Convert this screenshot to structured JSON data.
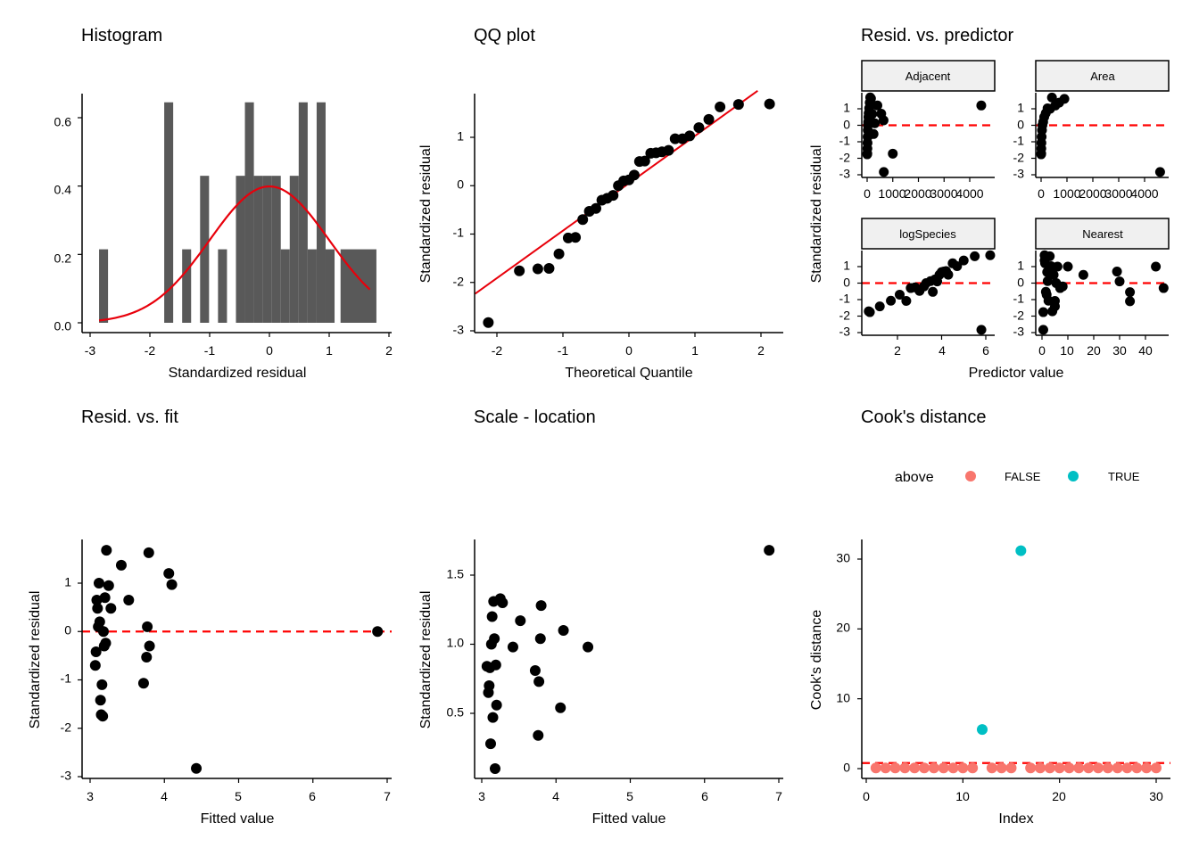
{
  "panels": {
    "histogram": {
      "title": "Histogram",
      "xlabel": "Standardized residual",
      "xticks": [
        "-3",
        "-2",
        "-1",
        "0",
        "1",
        "2"
      ],
      "yticks": [
        "0.0",
        "0.2",
        "0.4",
        "0.6"
      ]
    },
    "qq": {
      "title": "QQ plot",
      "xlabel": "Theoretical Quantile",
      "ylabel": "Standardized residual",
      "xticks": [
        "-2",
        "-1",
        "0",
        "1",
        "2"
      ],
      "yticks": [
        "-3",
        "-2",
        "-1",
        "0",
        "1"
      ]
    },
    "resid_predictor": {
      "title": "Resid. vs. predictor",
      "xlabel": "Predictor value",
      "ylabel": "Standardized residual",
      "facets": [
        "Adjacent",
        "Area",
        "logSpecies",
        "Nearest"
      ],
      "yticks": [
        "-3",
        "-2",
        "-1",
        "0",
        "1"
      ],
      "xticks_top": [
        "0",
        "1000",
        "2000",
        "3000",
        "4000"
      ],
      "xticks_logspecies": [
        "2",
        "4",
        "6"
      ],
      "xticks_nearest": [
        "0",
        "10",
        "20",
        "30",
        "40"
      ]
    },
    "resid_fit": {
      "title": "Resid. vs. fit",
      "xlabel": "Fitted value",
      "ylabel": "Standardized residual",
      "xticks": [
        "3",
        "4",
        "5",
        "6",
        "7"
      ],
      "yticks": [
        "-3",
        "-2",
        "-1",
        "0",
        "1"
      ]
    },
    "scale_location": {
      "title": "Scale - location",
      "xlabel": "Fitted value",
      "ylabel": "Standardized residual",
      "xticks": [
        "3",
        "4",
        "5",
        "6",
        "7"
      ],
      "yticks": [
        "0.5",
        "1.0",
        "1.5"
      ]
    },
    "cooks": {
      "title": "Cook's distance",
      "xlabel": "Index",
      "ylabel": "Cook's distance",
      "xticks": [
        "0",
        "10",
        "20",
        "30"
      ],
      "yticks": [
        "0",
        "10",
        "20",
        "30"
      ],
      "legend_title": "above",
      "legend_false": "FALSE",
      "legend_true": "TRUE"
    }
  },
  "colors": {
    "bar": "#595959",
    "point": "#000000",
    "curve": "#e8000b",
    "refline": "#ff0000",
    "cook_false": "#f8766d",
    "cook_true": "#00bfc4",
    "strip_bg": "#f0f0f0"
  },
  "chart_data": [
    {
      "type": "bar",
      "name": "Histogram",
      "bins_x": [
        [
          -2.85,
          -2.7
        ],
        [
          -1.76,
          -1.61
        ],
        [
          -1.46,
          -1.31
        ],
        [
          -1.16,
          -1.01
        ],
        [
          -0.86,
          -0.71
        ],
        [
          -0.56,
          -0.41
        ],
        [
          -0.41,
          -0.26
        ],
        [
          -0.26,
          -0.11
        ],
        [
          -0.11,
          0.04
        ],
        [
          0.04,
          0.19
        ],
        [
          0.19,
          0.34
        ],
        [
          0.34,
          0.49
        ],
        [
          0.49,
          0.64
        ],
        [
          0.64,
          0.79
        ],
        [
          0.79,
          0.94
        ],
        [
          0.94,
          1.09
        ],
        [
          1.19,
          1.79
        ]
      ],
      "density": [
        0.215,
        0.645,
        0.215,
        0.43,
        0.215,
        0.43,
        0.645,
        0.43,
        0.43,
        0.43,
        0.215,
        0.43,
        0.645,
        0.215,
        0.645,
        0.215,
        0.215
      ],
      "overlay": "normal density curve (mean 0, sd 1)",
      "xlim": [
        -3,
        2
      ],
      "ylim": [
        0,
        0.66
      ]
    },
    {
      "type": "scatter",
      "name": "QQ plot",
      "x": [
        -2.13,
        -1.66,
        -1.38,
        -1.21,
        -1.06,
        -0.92,
        -0.81,
        -0.7,
        -0.6,
        -0.5,
        -0.41,
        -0.33,
        -0.24,
        -0.16,
        -0.08,
        0,
        0.08,
        0.16,
        0.24,
        0.33,
        0.41,
        0.5,
        0.6,
        0.7,
        0.81,
        0.92,
        1.06,
        1.21,
        1.38,
        1.66,
        2.13
      ],
      "y": [
        -2.83,
        -1.76,
        -1.72,
        -1.71,
        -1.41,
        -1.08,
        -1.07,
        -0.7,
        -0.53,
        -0.47,
        -0.3,
        -0.26,
        -0.2,
        0,
        0.1,
        0.12,
        0.22,
        0.5,
        0.51,
        0.67,
        0.68,
        0.7,
        0.73,
        0.97,
        0.97,
        1.03,
        1.2,
        1.37,
        1.63,
        1.68,
        1.69
      ],
      "reference_line": {
        "intercept": 0.05,
        "slope": 0.98
      },
      "xlim": [
        -2.3,
        2.3
      ],
      "ylim": [
        -3,
        1.9
      ]
    },
    {
      "type": "scatter",
      "name": "Resid. vs. predictor",
      "facets": {
        "Adjacent": {
          "x": [
            3,
            6,
            10,
            15,
            20,
            25,
            30,
            40,
            50,
            60,
            80,
            100,
            120,
            150,
            200,
            250,
            300,
            400,
            550,
            640,
            650,
            1000,
            4450
          ],
          "y": [
            -1.76,
            -1.71,
            -1.41,
            -1.07,
            -0.7,
            -0.3,
            0,
            0.2,
            0.5,
            0.73,
            1.03,
            1.37,
            1.69,
            1.63,
            0.68,
            -0.53,
            0.12,
            1.2,
            0.7,
            0.3,
            -2.83,
            -1.72,
            1.2
          ]
        },
        "Area": {
          "x": [
            2,
            5,
            8,
            12,
            20,
            35,
            50,
            80,
            120,
            180,
            250,
            350,
            420,
            550,
            700,
            900,
            4600
          ],
          "y": [
            -1.76,
            -1.71,
            -1.41,
            -1.07,
            -0.7,
            -0.3,
            0,
            0.2,
            0.5,
            0.73,
            1.03,
            1.0,
            1.68,
            1.2,
            1.37,
            1.6,
            -2.83
          ]
        },
        "logSpecies": {
          "x": [
            0.7,
            0.75,
            1.2,
            1.7,
            2.1,
            2.4,
            2.6,
            2.8,
            3.0,
            3.2,
            3.3,
            3.5,
            3.6,
            3.7,
            3.8,
            3.9,
            4.0,
            4.1,
            4.2,
            4.3,
            4.5,
            4.7,
            5.0,
            5.5,
            5.8,
            6.2
          ],
          "y": [
            -1.71,
            -1.76,
            -1.41,
            -1.07,
            -0.7,
            -1.08,
            -0.3,
            -0.26,
            -0.47,
            -0.2,
            0,
            0.12,
            -0.53,
            0.22,
            0.1,
            0.5,
            0.67,
            0.7,
            0.73,
            0.51,
            1.2,
            1.03,
            1.37,
            1.63,
            -2.83,
            1.69
          ]
        },
        "Nearest": {
          "x": [
            0.5,
            0.5,
            1,
            1,
            1.2,
            1.5,
            1.8,
            2,
            2.2,
            2.5,
            3,
            3.5,
            4,
            4.5,
            5,
            5,
            5.5,
            6,
            7,
            8,
            10,
            16,
            29,
            30,
            34,
            34,
            44,
            47
          ],
          "y": [
            -2.83,
            -1.76,
            1.69,
            1.37,
            1.2,
            -0.53,
            -0.7,
            0.67,
            0.12,
            -1.07,
            1.63,
            1.03,
            -1.71,
            0.5,
            -1.41,
            -1.08,
            0,
            1.0,
            -0.3,
            -0.2,
            1.0,
            0.5,
            0.7,
            0.1,
            -0.55,
            -1.1,
            1.0,
            -0.3
          ]
        }
      },
      "xlim_adjacent": [
        -200,
        4800
      ],
      "xlim_area": [
        -200,
        4800
      ],
      "xlim_logspecies": [
        0.5,
        6.3
      ],
      "xlim_nearest": [
        -2,
        48
      ],
      "ylim": [
        -3,
        1.7
      ],
      "reference": 0
    },
    {
      "type": "scatter",
      "name": "Resid. vs. fit",
      "x": [
        3.07,
        3.08,
        3.1,
        3.09,
        3.12,
        3.13,
        3.11,
        3.15,
        3.14,
        3.16,
        3.17,
        3.18,
        3.19,
        3.2,
        3.21,
        3.22,
        3.25,
        3.28,
        3.42,
        3.52,
        3.72,
        3.76,
        3.77,
        3.79,
        3.8,
        4.06,
        4.1,
        4.43,
        6.87
      ],
      "y": [
        -0.7,
        -0.42,
        0.48,
        0.65,
        1.0,
        0.2,
        0.1,
        -1.72,
        -1.42,
        -1.1,
        -1.75,
        0,
        -0.3,
        0.7,
        -0.24,
        1.68,
        0.95,
        0.48,
        1.37,
        0.65,
        -1.07,
        -0.53,
        0.1,
        1.63,
        -0.3,
        1.2,
        0.97,
        -2.83,
        0
      ]
    },
    {
      "type": "scatter",
      "name": "Scale - location",
      "x": [
        3.07,
        3.09,
        3.1,
        3.11,
        3.12,
        3.13,
        3.14,
        3.15,
        3.16,
        3.17,
        3.18,
        3.19,
        3.2,
        3.25,
        3.28,
        3.42,
        3.52,
        3.72,
        3.76,
        3.77,
        3.79,
        3.8,
        4.06,
        4.1,
        4.43,
        6.87
      ],
      "y": [
        0.84,
        0.65,
        0.7,
        0.83,
        0.28,
        1.0,
        1.2,
        0.47,
        1.31,
        1.04,
        0.1,
        0.85,
        0.56,
        1.33,
        1.3,
        0.98,
        1.17,
        0.81,
        0.34,
        0.73,
        1.04,
        1.28,
        0.54,
        1.1,
        0.98,
        1.68
      ]
    },
    {
      "type": "scatter",
      "name": "Cook's distance",
      "x": [
        1,
        2,
        3,
        4,
        5,
        6,
        7,
        8,
        9,
        10,
        11,
        12,
        13,
        14,
        15,
        16,
        17,
        18,
        19,
        20,
        21,
        22,
        23,
        24,
        25,
        26,
        27,
        28,
        29,
        30
      ],
      "y": [
        0.1,
        0.1,
        0.1,
        0.1,
        0.1,
        0.1,
        0.1,
        0.1,
        0.1,
        0.1,
        0.1,
        5.6,
        0.1,
        0.1,
        0.1,
        31.2,
        0.1,
        0.1,
        0.1,
        0.1,
        0.1,
        0.1,
        0.1,
        0.1,
        0.1,
        0.1,
        0.1,
        0.1,
        0.1,
        0.1
      ],
      "above": [
        false,
        false,
        false,
        false,
        false,
        false,
        false,
        false,
        false,
        false,
        false,
        true,
        false,
        false,
        false,
        true,
        false,
        false,
        false,
        false,
        false,
        false,
        false,
        false,
        false,
        false,
        false,
        false,
        false,
        false
      ],
      "threshold": 0.8,
      "xlim": [
        -0.5,
        31.5
      ],
      "ylim": [
        -1,
        33
      ]
    }
  ]
}
